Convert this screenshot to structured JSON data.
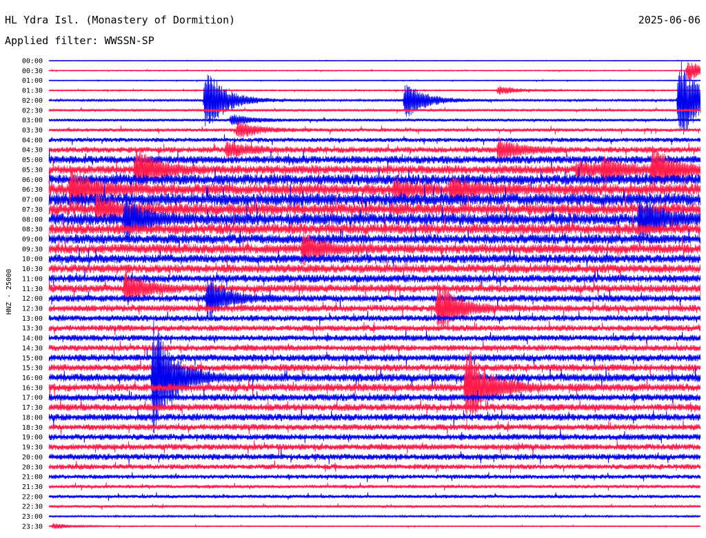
{
  "header": {
    "station": "HL Ydra Isl. (Monastery of Dormition)",
    "date": "2025-06-06",
    "filter": "Applied filter: WWSSN-SP"
  },
  "chart_data": {
    "type": "line",
    "title": "HL Ydra Isl. (Monastery of Dormition)",
    "ylabel": "HNZ - 25000",
    "trace_colors": [
      "#0000ee",
      "#ff1a4a"
    ],
    "rows": [
      "00:00",
      "00:30",
      "01:00",
      "01:30",
      "02:00",
      "02:30",
      "03:00",
      "03:30",
      "04:00",
      "04:30",
      "05:00",
      "05:30",
      "06:00",
      "06:30",
      "07:00",
      "07:30",
      "08:00",
      "08:30",
      "09:00",
      "09:30",
      "10:00",
      "10:30",
      "11:00",
      "11:30",
      "12:00",
      "12:30",
      "13:00",
      "13:30",
      "14:00",
      "14:30",
      "15:00",
      "15:30",
      "16:00",
      "16:30",
      "17:00",
      "17:30",
      "18:00",
      "18:30",
      "19:00",
      "19:30",
      "20:00",
      "20:30",
      "21:00",
      "21:30",
      "22:00",
      "22:30",
      "23:00",
      "23:30"
    ],
    "noise_level": [
      0.3,
      0.6,
      0.5,
      0.8,
      1.2,
      1.4,
      1.6,
      2.0,
      2.5,
      3.5,
      4.5,
      5.0,
      6.0,
      6.5,
      7.0,
      6.5,
      6.5,
      6.0,
      5.5,
      5.5,
      5.0,
      5.0,
      4.5,
      4.5,
      4.0,
      4.0,
      3.5,
      3.5,
      3.5,
      3.5,
      4.0,
      4.0,
      4.5,
      4.5,
      4.0,
      4.0,
      4.0,
      3.5,
      3.5,
      3.5,
      3.5,
      3.0,
      2.5,
      2.0,
      2.0,
      1.5,
      1.0,
      0.6
    ],
    "events": [
      {
        "row": 1,
        "minute": 29.4,
        "amp": 14
      },
      {
        "row": 3,
        "minute": 20.7,
        "amp": 6
      },
      {
        "row": 4,
        "minute": 7.2,
        "amp": 45
      },
      {
        "row": 4,
        "minute": 16.4,
        "amp": 25
      },
      {
        "row": 4,
        "minute": 29.0,
        "amp": 60
      },
      {
        "row": 6,
        "minute": 8.4,
        "amp": 8
      },
      {
        "row": 7,
        "minute": 8.7,
        "amp": 12
      },
      {
        "row": 9,
        "minute": 8.2,
        "amp": 12
      },
      {
        "row": 9,
        "minute": 20.7,
        "amp": 15
      },
      {
        "row": 11,
        "minute": 4.0,
        "amp": 30
      },
      {
        "row": 11,
        "minute": 24.3,
        "amp": 10
      },
      {
        "row": 11,
        "minute": 25.5,
        "amp": 14
      },
      {
        "row": 11,
        "minute": 27.8,
        "amp": 30
      },
      {
        "row": 13,
        "minute": 1.0,
        "amp": 25
      },
      {
        "row": 13,
        "minute": 15.9,
        "amp": 10
      },
      {
        "row": 13,
        "minute": 18.5,
        "amp": 15
      },
      {
        "row": 15,
        "minute": 2.2,
        "amp": 15
      },
      {
        "row": 16,
        "minute": 3.5,
        "amp": 30
      },
      {
        "row": 16,
        "minute": 27.2,
        "amp": 30
      },
      {
        "row": 19,
        "minute": 11.7,
        "amp": 20
      },
      {
        "row": 23,
        "minute": 3.5,
        "amp": 20
      },
      {
        "row": 24,
        "minute": 7.3,
        "amp": 25
      },
      {
        "row": 25,
        "minute": 17.9,
        "amp": 35
      },
      {
        "row": 32,
        "minute": 4.8,
        "amp": 75
      },
      {
        "row": 33,
        "minute": 19.2,
        "amp": 60
      },
      {
        "row": 47,
        "minute": 0.2,
        "amp": 4
      }
    ]
  }
}
